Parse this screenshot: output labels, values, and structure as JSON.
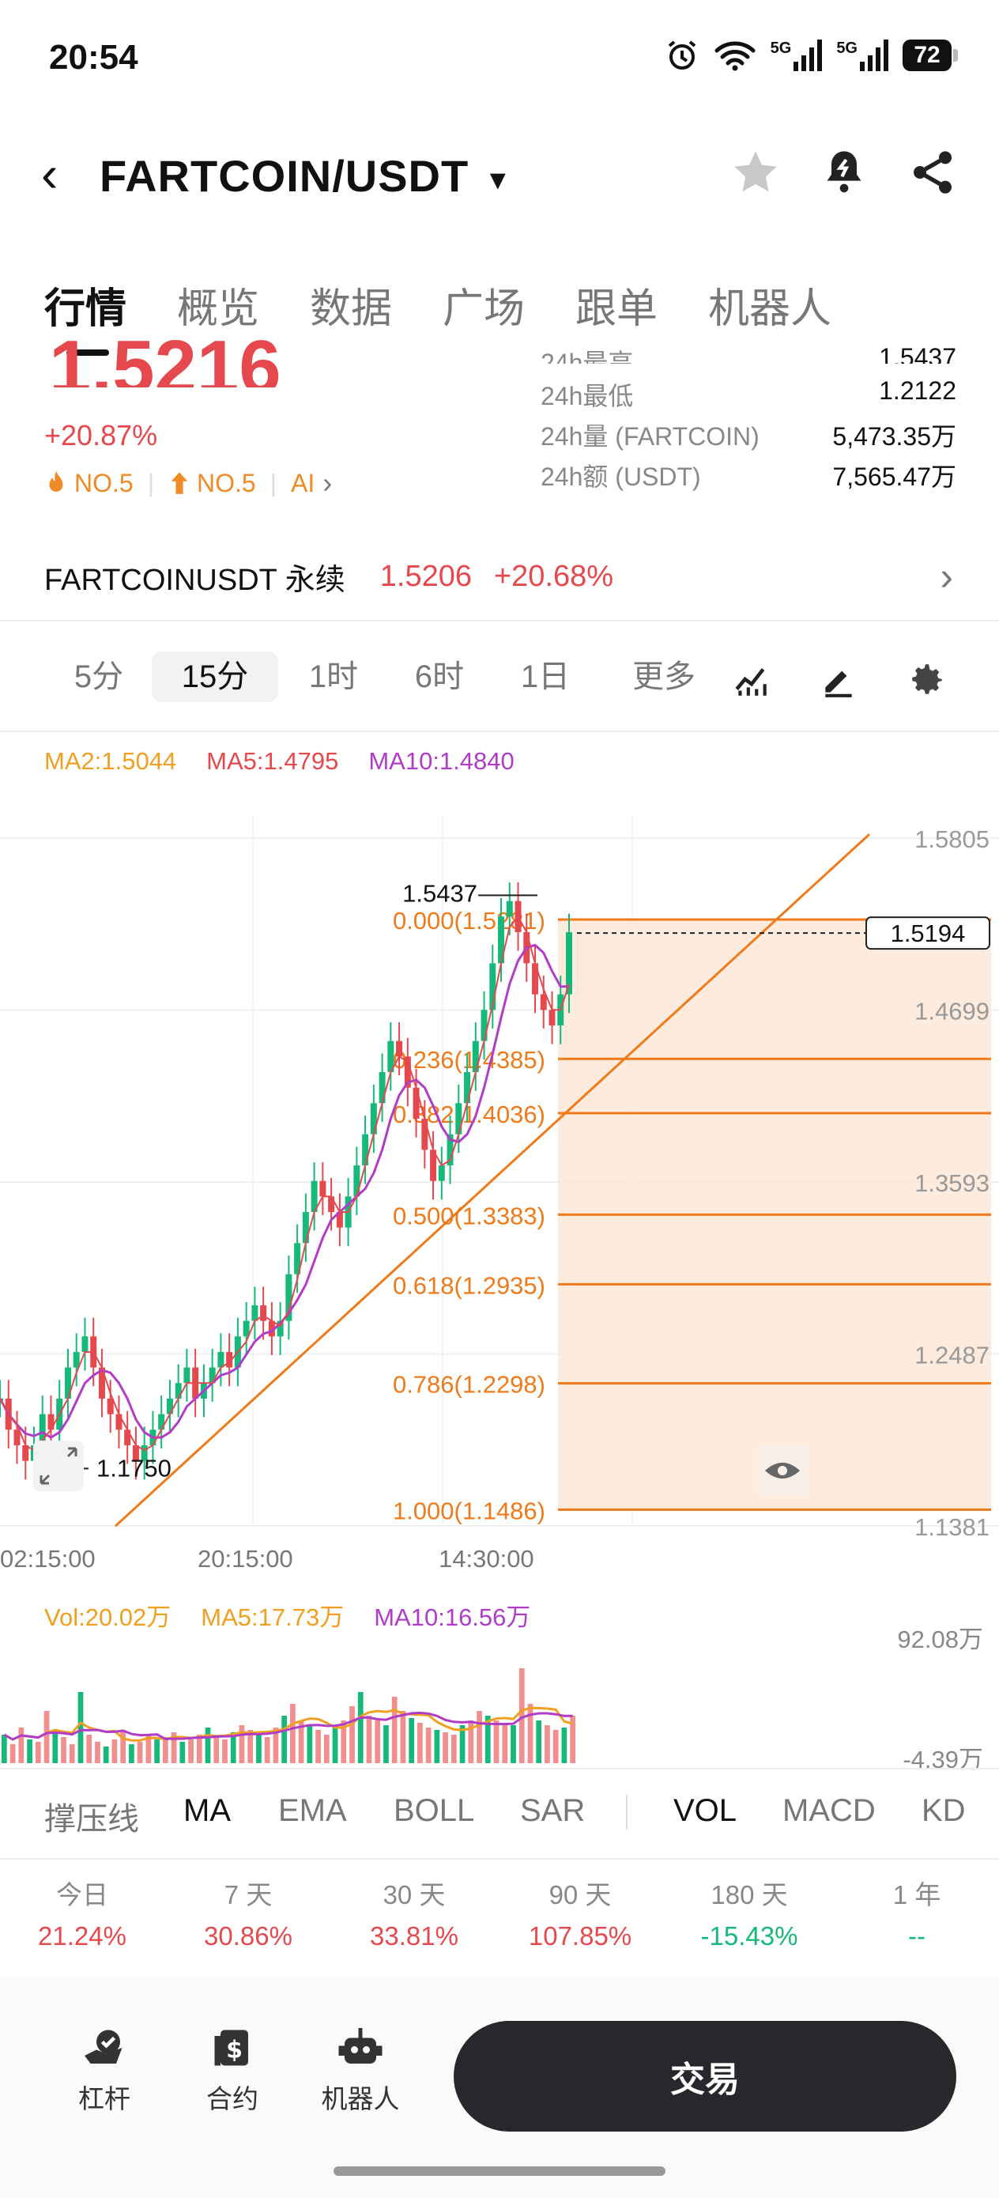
{
  "status_bar": {
    "time": "20:54",
    "net1": "5G",
    "net2": "5G",
    "battery": "72"
  },
  "header": {
    "back_glyph": "‹",
    "pair": "FARTCOIN/USDT",
    "dropdown_glyph": "▾"
  },
  "tabs": [
    {
      "label": "行情",
      "active": true
    },
    {
      "label": "概览"
    },
    {
      "label": "数据"
    },
    {
      "label": "广场"
    },
    {
      "label": "跟单"
    },
    {
      "label": "机器人"
    }
  ],
  "ticker": {
    "price": "1.5216",
    "change": "+20.87%",
    "badge_hot": "NO.5",
    "badge_rise": "NO.5",
    "badge_ai": "AI",
    "stats": [
      {
        "label": "24h最高",
        "value": "1.5437"
      },
      {
        "label": "24h最低",
        "value": "1.2122"
      },
      {
        "label": "24h量 (FARTCOIN)",
        "value": "5,473.35万"
      },
      {
        "label": "24h额 (USDT)",
        "value": "7,565.47万"
      }
    ]
  },
  "perpetual": {
    "name": "FARTCOINUSDT 永续",
    "price": "1.5206",
    "change": "+20.68%"
  },
  "timeframes": [
    {
      "label": "5分"
    },
    {
      "label": "15分",
      "active": true
    },
    {
      "label": "1时"
    },
    {
      "label": "6时"
    },
    {
      "label": "1日"
    },
    {
      "label": "更多"
    }
  ],
  "ma_legend": [
    {
      "text": "MA2:1.5044",
      "color": "#f0a020"
    },
    {
      "text": "MA5:1.4795",
      "color": "#e5484d"
    },
    {
      "text": "MA10:1.4840",
      "color": "#b03cc8"
    }
  ],
  "chart_data": {
    "type": "line",
    "y_axis_labels": [
      "1.5805",
      "1.4699",
      "1.3593",
      "1.2487",
      "1.1381"
    ],
    "x_axis_labels": [
      "02:15:00",
      "20:15:00",
      "14:30:00"
    ],
    "ylim": [
      1.1381,
      1.5805
    ],
    "high_label": "1.5437",
    "low_label": "1.1750",
    "current_price": "1.5194",
    "fib_levels": [
      {
        "label": "0.000(1.5281)",
        "price": 1.5281
      },
      {
        "label": "0.236(1.4385)",
        "price": 1.4385
      },
      {
        "label": "0.382(1.4036)",
        "price": 1.4036
      },
      {
        "label": "0.500(1.3383)",
        "price": 1.3383
      },
      {
        "label": "0.618(1.2935)",
        "price": 1.2935
      },
      {
        "label": "0.786(1.2298)",
        "price": 1.2298
      },
      {
        "label": "1.000(1.1486)",
        "price": 1.1486
      }
    ],
    "price_series": [
      1.22,
      1.2,
      1.19,
      1.18,
      1.19,
      1.21,
      1.2,
      1.22,
      1.24,
      1.25,
      1.26,
      1.24,
      1.22,
      1.21,
      1.2,
      1.19,
      1.18,
      1.19,
      1.2,
      1.21,
      1.22,
      1.23,
      1.24,
      1.22,
      1.23,
      1.24,
      1.25,
      1.24,
      1.26,
      1.27,
      1.28,
      1.27,
      1.26,
      1.27,
      1.3,
      1.32,
      1.34,
      1.36,
      1.35,
      1.34,
      1.33,
      1.35,
      1.37,
      1.39,
      1.41,
      1.43,
      1.45,
      1.44,
      1.42,
      1.4,
      1.38,
      1.36,
      1.37,
      1.39,
      1.41,
      1.43,
      1.45,
      1.47,
      1.5,
      1.53,
      1.54,
      1.52,
      1.5,
      1.48,
      1.47,
      1.46,
      1.48,
      1.52
    ]
  },
  "vol_legend": [
    {
      "text": "Vol:20.02万",
      "color": "#f0a020"
    },
    {
      "text": "MA5:17.73万",
      "color": "#f0a020"
    },
    {
      "text": "MA10:16.56万",
      "color": "#b03cc8"
    }
  ],
  "vol_axis": {
    "max": "92.08万",
    "min": "-4.39万"
  },
  "volume_series": [
    12,
    8,
    15,
    10,
    9,
    22,
    14,
    11,
    8,
    30,
    12,
    9,
    7,
    10,
    14,
    8,
    9,
    12,
    10,
    11,
    13,
    9,
    10,
    12,
    15,
    11,
    10,
    13,
    16,
    14,
    12,
    11,
    15,
    20,
    25,
    18,
    16,
    14,
    12,
    15,
    18,
    24,
    30,
    20,
    18,
    16,
    28,
    22,
    19,
    17,
    15,
    14,
    13,
    12,
    16,
    18,
    22,
    20,
    18,
    17,
    16,
    40,
    25,
    18,
    16,
    14,
    15,
    20
  ],
  "indicators": [
    {
      "label": "撑压线"
    },
    {
      "label": "MA",
      "active": true
    },
    {
      "label": "EMA"
    },
    {
      "label": "BOLL"
    },
    {
      "label": "SAR"
    },
    {
      "label": "VOL",
      "active": true
    },
    {
      "label": "MACD"
    },
    {
      "label": "KD"
    }
  ],
  "performance": [
    {
      "label": "今日",
      "value": "21.24%",
      "tone": "red"
    },
    {
      "label": "7 天",
      "value": "30.86%",
      "tone": "red"
    },
    {
      "label": "30 天",
      "value": "33.81%",
      "tone": "red"
    },
    {
      "label": "90 天",
      "value": "107.85%",
      "tone": "red"
    },
    {
      "label": "180 天",
      "value": "-15.43%",
      "tone": "green"
    },
    {
      "label": "1 年",
      "value": "--",
      "tone": "green"
    }
  ],
  "bottom_nav": {
    "items": [
      {
        "label": "杠杆"
      },
      {
        "label": "合约"
      },
      {
        "label": "机器人"
      }
    ],
    "trade": "交易"
  }
}
